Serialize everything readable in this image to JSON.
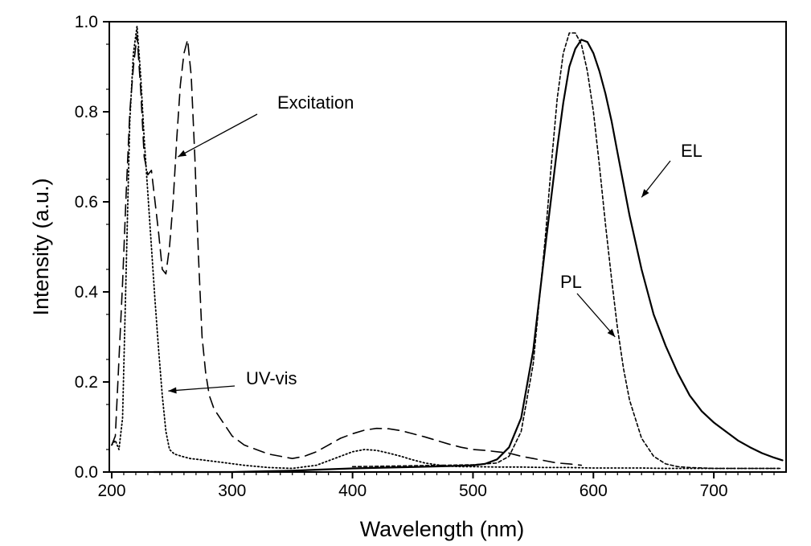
{
  "chart_data": {
    "type": "line",
    "title": "",
    "xlabel": "Wavelength (nm)",
    "ylabel": "Intensity (a.u.)",
    "xlim": [
      198,
      760
    ],
    "ylim": [
      0,
      1.0
    ],
    "xticks": [
      200,
      300,
      400,
      500,
      600,
      700
    ],
    "yticks": [
      0.0,
      0.2,
      0.4,
      0.6,
      0.8,
      1.0
    ],
    "xtick_labels": [
      "200",
      "300",
      "400",
      "500",
      "600",
      "700"
    ],
    "ytick_labels": [
      "0.0",
      "0.2",
      "0.4",
      "0.6",
      "0.8",
      "1.0"
    ],
    "grid": false,
    "legend": "none",
    "annotations": [
      {
        "text": "Excitation",
        "target": [
          255,
          0.7
        ]
      },
      {
        "text": "UV-vis",
        "target": [
          247,
          0.18
        ]
      },
      {
        "text": "EL",
        "target": [
          640,
          0.61
        ]
      },
      {
        "text": "PL",
        "target": [
          618,
          0.3
        ]
      }
    ],
    "series": [
      {
        "name": "Excitation",
        "style": "dashed",
        "x": [
          200,
          203,
          206,
          209,
          212,
          215,
          218,
          221,
          224,
          227,
          230,
          233,
          236,
          239,
          242,
          245,
          248,
          251,
          254,
          257,
          260,
          263,
          266,
          269,
          272,
          275,
          278,
          281,
          285,
          290,
          300,
          310,
          320,
          330,
          340,
          350,
          360,
          370,
          380,
          390,
          400,
          410,
          420,
          430,
          440,
          450,
          460,
          470,
          480,
          490,
          500,
          510,
          520,
          530,
          540,
          550,
          560,
          570,
          580,
          590
        ],
        "y": [
          0.06,
          0.08,
          0.25,
          0.42,
          0.62,
          0.8,
          0.9,
          0.97,
          0.85,
          0.7,
          0.66,
          0.67,
          0.6,
          0.53,
          0.45,
          0.44,
          0.5,
          0.6,
          0.74,
          0.86,
          0.93,
          0.96,
          0.88,
          0.7,
          0.48,
          0.3,
          0.22,
          0.17,
          0.14,
          0.12,
          0.08,
          0.06,
          0.05,
          0.04,
          0.035,
          0.03,
          0.035,
          0.045,
          0.06,
          0.075,
          0.085,
          0.093,
          0.097,
          0.096,
          0.092,
          0.085,
          0.078,
          0.07,
          0.062,
          0.055,
          0.05,
          0.048,
          0.045,
          0.042,
          0.035,
          0.03,
          0.025,
          0.02,
          0.018,
          0.015
        ]
      },
      {
        "name": "UV-vis",
        "style": "dotted",
        "x": [
          200,
          203,
          206,
          209,
          212,
          215,
          218,
          221,
          224,
          227,
          230,
          233,
          236,
          239,
          242,
          245,
          248,
          252,
          258,
          265,
          275,
          290,
          310,
          330,
          350,
          370,
          390,
          400,
          410,
          420,
          430,
          440,
          450,
          460,
          470,
          480,
          490,
          500,
          520,
          540,
          560,
          580,
          600,
          620,
          640,
          660,
          680,
          700,
          720,
          740,
          755
        ],
        "y": [
          0.06,
          0.07,
          0.05,
          0.12,
          0.45,
          0.78,
          0.93,
          0.99,
          0.88,
          0.74,
          0.62,
          0.5,
          0.38,
          0.27,
          0.17,
          0.09,
          0.05,
          0.04,
          0.035,
          0.03,
          0.027,
          0.022,
          0.015,
          0.01,
          0.008,
          0.015,
          0.035,
          0.045,
          0.05,
          0.048,
          0.042,
          0.035,
          0.027,
          0.02,
          0.016,
          0.013,
          0.012,
          0.012,
          0.011,
          0.011,
          0.01,
          0.01,
          0.009,
          0.009,
          0.009,
          0.008,
          0.008,
          0.008,
          0.008,
          0.008,
          0.008
        ]
      },
      {
        "name": "EL",
        "style": "solid",
        "x": [
          235,
          260,
          300,
          350,
          400,
          450,
          480,
          500,
          510,
          520,
          530,
          540,
          550,
          560,
          570,
          575,
          580,
          585,
          590,
          595,
          600,
          605,
          610,
          615,
          620,
          625,
          630,
          635,
          640,
          645,
          650,
          660,
          670,
          680,
          690,
          700,
          710,
          720,
          730,
          740,
          750,
          757
        ],
        "y": [
          0.0,
          0.0,
          0.0,
          0.003,
          0.008,
          0.011,
          0.013,
          0.015,
          0.018,
          0.028,
          0.055,
          0.12,
          0.27,
          0.5,
          0.72,
          0.82,
          0.9,
          0.94,
          0.96,
          0.955,
          0.93,
          0.89,
          0.84,
          0.78,
          0.71,
          0.64,
          0.57,
          0.51,
          0.45,
          0.4,
          0.35,
          0.28,
          0.22,
          0.17,
          0.135,
          0.11,
          0.09,
          0.07,
          0.055,
          0.042,
          0.032,
          0.026
        ]
      },
      {
        "name": "PL",
        "style": "short-dashed",
        "x": [
          400,
          450,
          500,
          520,
          530,
          540,
          550,
          560,
          565,
          570,
          575,
          580,
          585,
          590,
          595,
          600,
          605,
          610,
          615,
          620,
          625,
          630,
          640,
          650,
          660,
          670,
          680,
          700,
          720,
          740,
          755
        ],
        "y": [
          0.012,
          0.014,
          0.016,
          0.02,
          0.035,
          0.09,
          0.24,
          0.52,
          0.68,
          0.83,
          0.93,
          0.975,
          0.975,
          0.95,
          0.89,
          0.8,
          0.68,
          0.55,
          0.43,
          0.32,
          0.23,
          0.16,
          0.075,
          0.035,
          0.018,
          0.012,
          0.01,
          0.008,
          0.008,
          0.008,
          0.008
        ]
      }
    ]
  }
}
